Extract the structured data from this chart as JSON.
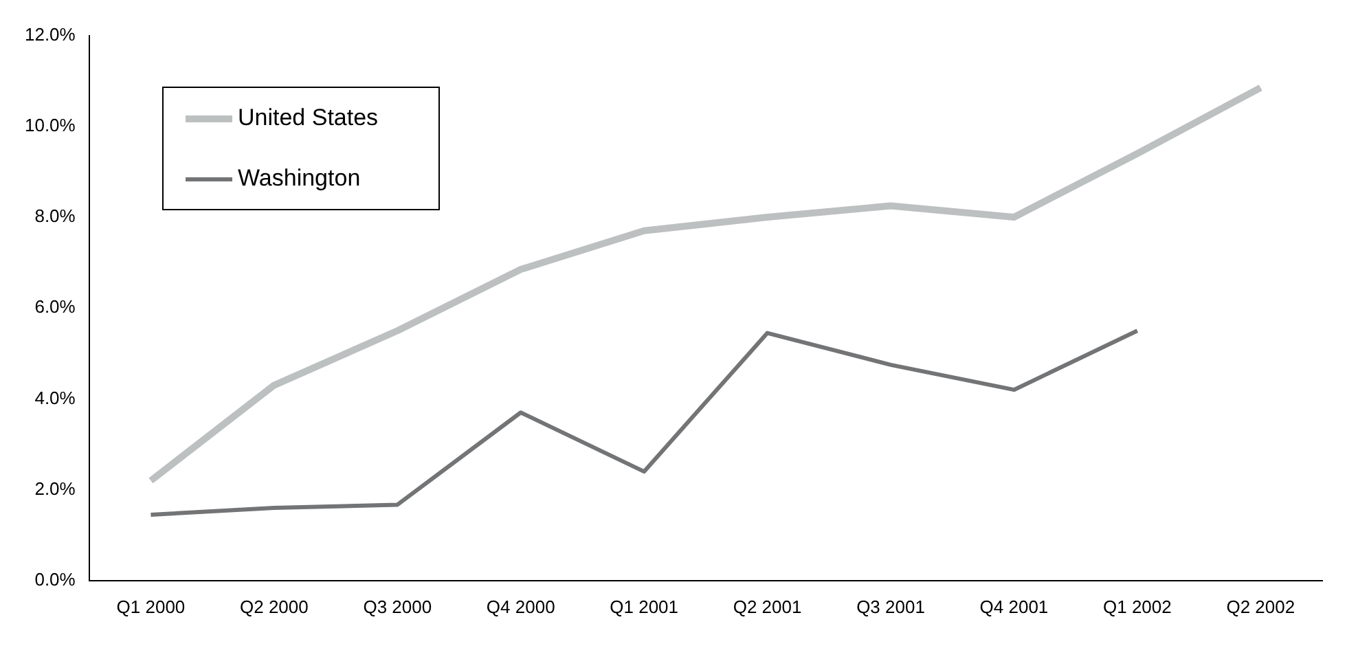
{
  "chart_data": {
    "type": "line",
    "categories": [
      "Q1 2000",
      "Q2 2000",
      "Q3 2000",
      "Q4 2000",
      "Q1 2001",
      "Q2 2001",
      "Q3 2001",
      "Q4 2001",
      "Q1 2002",
      "Q2 2002"
    ],
    "series": [
      {
        "name": "United States",
        "color": "#bcc0c1",
        "values": [
          2.2,
          4.3,
          5.5,
          6.85,
          7.7,
          8.0,
          8.25,
          8.0,
          9.4,
          10.85
        ]
      },
      {
        "name": "Washington",
        "color": "#737476",
        "values": [
          1.45,
          1.6,
          1.67,
          3.7,
          2.4,
          5.45,
          4.75,
          4.2,
          5.5,
          null
        ]
      }
    ],
    "ylim": [
      0,
      12
    ],
    "yticks": [
      {
        "value": 0,
        "label": "0.0%"
      },
      {
        "value": 2,
        "label": "2.0%"
      },
      {
        "value": 4,
        "label": "4.0%"
      },
      {
        "value": 6,
        "label": "6.0%"
      },
      {
        "value": 8,
        "label": "8.0%"
      },
      {
        "value": 10,
        "label": "10.0%"
      },
      {
        "value": 12,
        "label": "12.0%"
      }
    ],
    "grid": false,
    "legend": "top left",
    "marker": "none",
    "line_style": "solid"
  }
}
